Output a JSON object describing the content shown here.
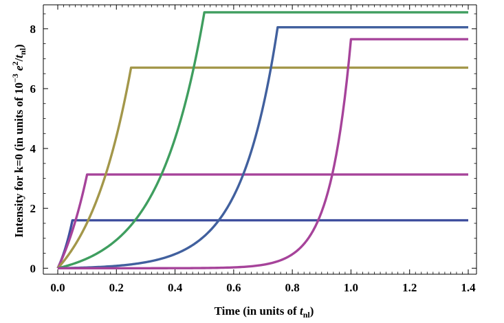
{
  "chart_data": {
    "type": "line",
    "title": "",
    "xlabel": "Time (in units of t_nl)",
    "ylabel": "Intensity  for k=0 (in units of 10^-3 e^2/t_nl)",
    "xlabel_parts": {
      "pre": "Time (in units of ",
      "var": "t",
      "sub": "nl",
      "post": ")"
    },
    "ylabel_parts": {
      "pre": "Intensity  for k=0 (in units of 10",
      "sup": "−3",
      "var": "e",
      "sup2": "2",
      "slash": "/",
      "var2": "t",
      "sub": "nl",
      "post": ")"
    },
    "xlim": [
      0,
      1.4
    ],
    "ylim": [
      -0.2,
      8.8
    ],
    "x_ticks": [
      0.0,
      0.2,
      0.4,
      0.6,
      0.8,
      1.0,
      1.2,
      1.4
    ],
    "x_tick_labels": [
      "0.0",
      "0.2",
      "0.4",
      "0.6",
      "0.8",
      "1.0",
      "1.2",
      "1.4"
    ],
    "y_ticks": [
      0,
      2,
      4,
      6,
      8
    ],
    "y_tick_labels": [
      "0",
      "2",
      "4",
      "6",
      "8"
    ],
    "grid": false,
    "legend": "none",
    "series": [
      {
        "color": "#3f4f9e",
        "t_switch": 0.05,
        "plateau": 1.6,
        "shape": 0.8,
        "x_end": 1.4
      },
      {
        "color": "#a6439a",
        "t_switch": 0.1,
        "plateau": 3.13,
        "shape": 0.8,
        "x_end": 1.4
      },
      {
        "color": "#a3974a",
        "t_switch": 0.25,
        "plateau": 6.7,
        "shape": 1.6,
        "x_end": 1.4
      },
      {
        "color": "#3f9e5f",
        "t_switch": 0.5,
        "plateau": 8.55,
        "shape": 3.2,
        "x_end": 1.4
      },
      {
        "color": "#41609e",
        "t_switch": 0.75,
        "plateau": 8.05,
        "shape": 6.0,
        "x_end": 1.4
      },
      {
        "color": "#a6439a",
        "t_switch": 1.0,
        "plateau": 7.65,
        "shape": 14.0,
        "x_end": 1.4
      }
    ]
  }
}
